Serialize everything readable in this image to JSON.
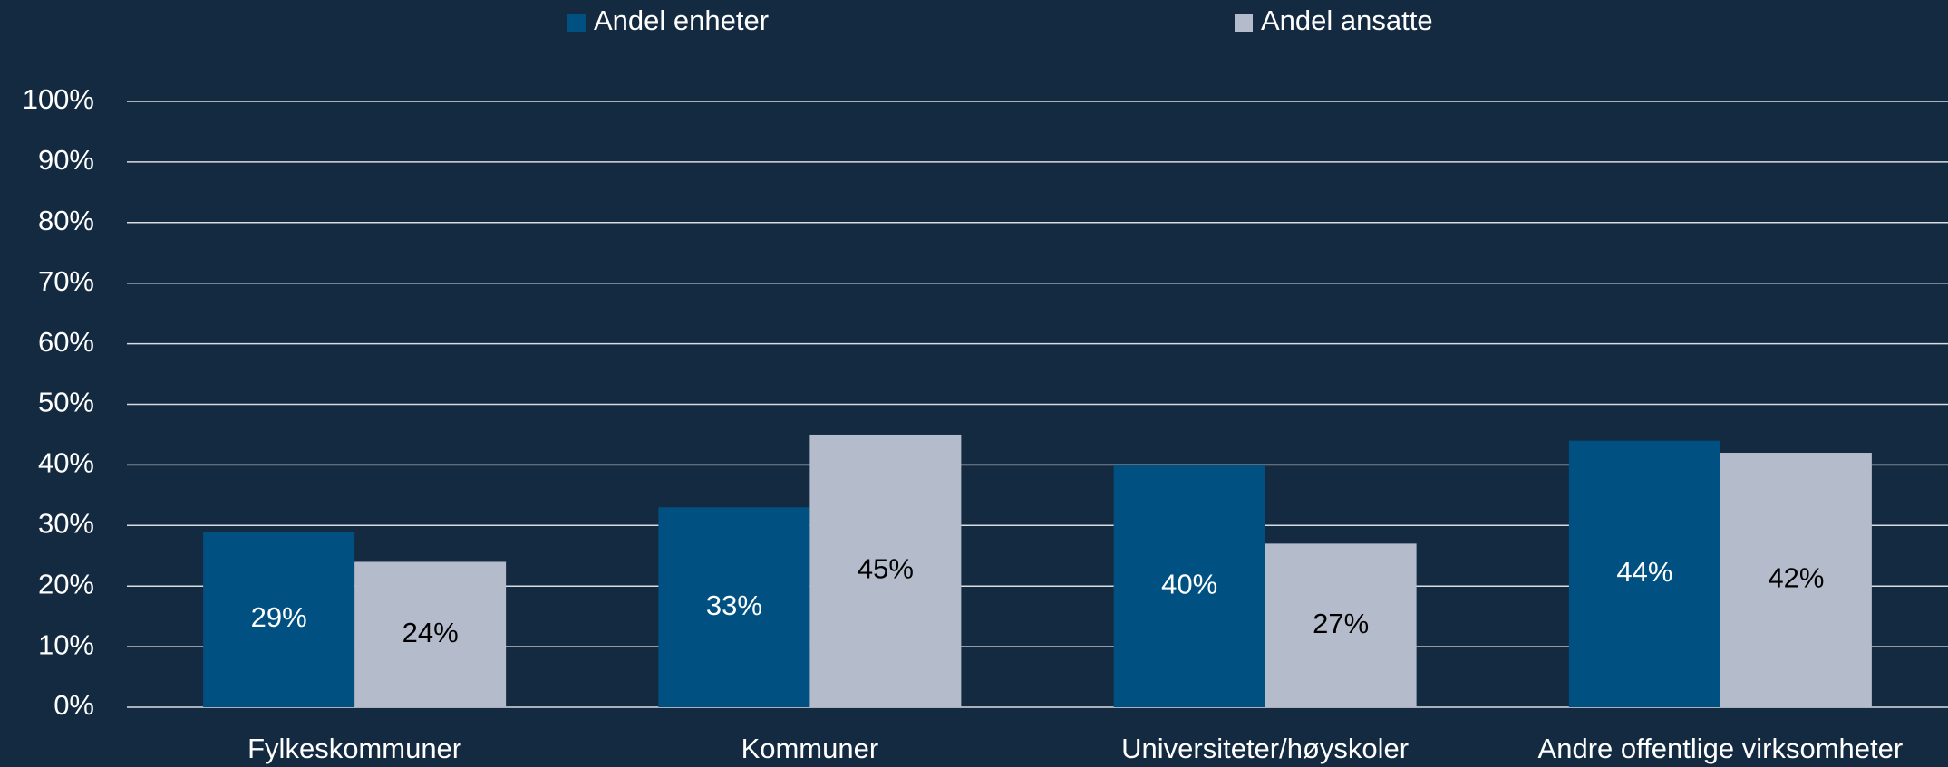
{
  "chart_data": {
    "type": "bar",
    "categories": [
      "Fylkeskommuner",
      "Kommuner",
      "Universiteter/høyskoler",
      "Andre offentlige virksomheter"
    ],
    "series": [
      {
        "name": "Andel enheter",
        "color": "#005082",
        "values": [
          29,
          33,
          40,
          44
        ],
        "value_labels": [
          "29%",
          "33%",
          "40%",
          "44%"
        ]
      },
      {
        "name": "Andel ansatte",
        "color": "#b4bccb",
        "values": [
          24,
          45,
          27,
          42
        ],
        "value_labels": [
          "24%",
          "45%",
          "27%",
          "42%"
        ]
      }
    ],
    "ylim": [
      0,
      100
    ],
    "yticks": [
      {
        "value": 0,
        "label": "0%"
      },
      {
        "value": 10,
        "label": "10%"
      },
      {
        "value": 20,
        "label": "20%"
      },
      {
        "value": 30,
        "label": "30%"
      },
      {
        "value": 40,
        "label": "40%"
      },
      {
        "value": 50,
        "label": "50%"
      },
      {
        "value": 60,
        "label": "60%"
      },
      {
        "value": 70,
        "label": "70%"
      },
      {
        "value": 80,
        "label": "80%"
      },
      {
        "value": 90,
        "label": "90%"
      },
      {
        "value": 100,
        "label": "100%"
      }
    ],
    "grid": true,
    "legend": "top"
  }
}
